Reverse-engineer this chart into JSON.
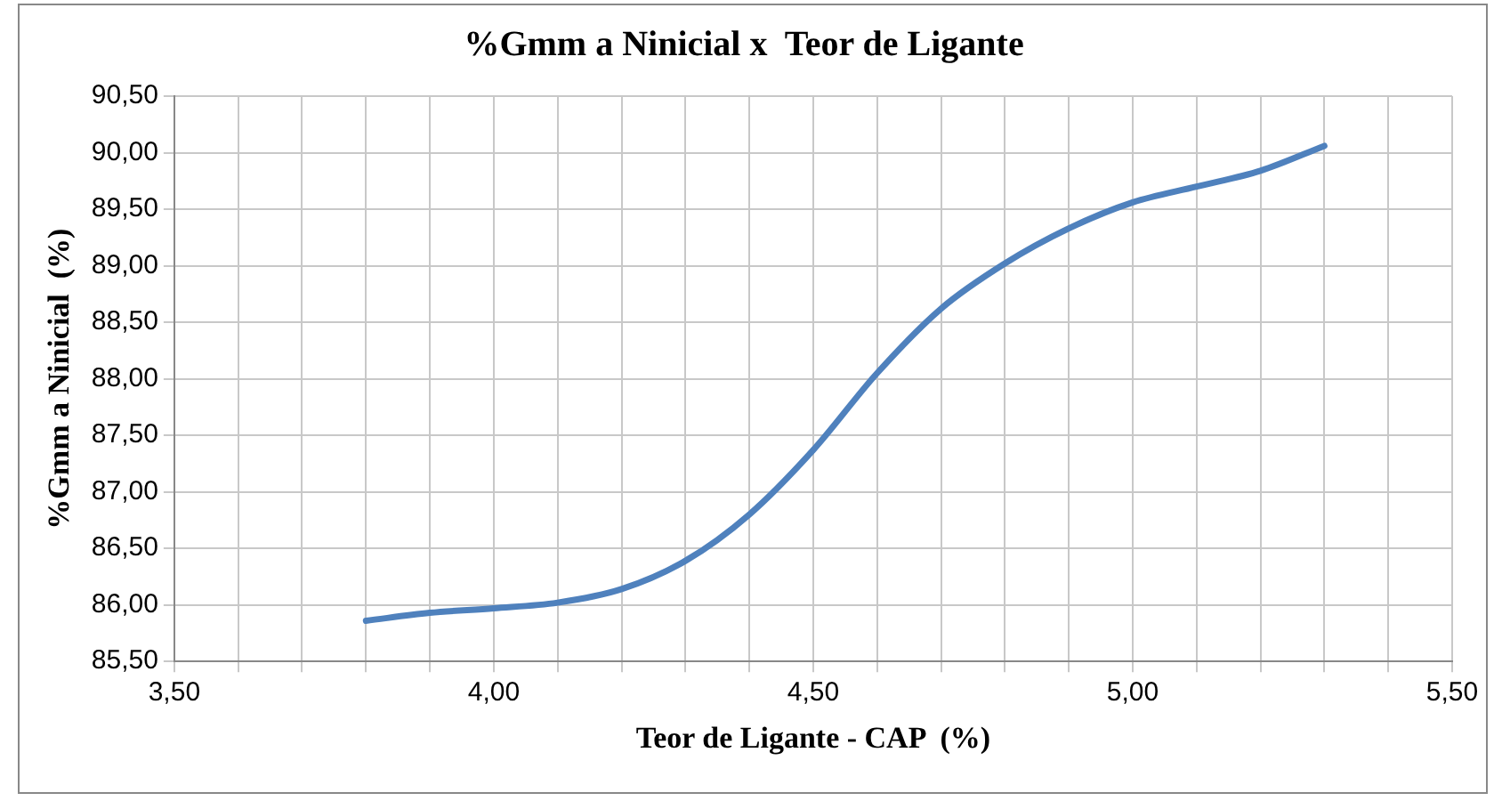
{
  "chart_data": {
    "type": "line",
    "title": "%Gmm a Ninicial x  Teor de Ligante",
    "xlabel": "Teor de Ligante - CAP  (%)",
    "ylabel": "%Gmm a Ninicial  (%)",
    "x": [
      3.8,
      3.9,
      4.0,
      4.1,
      4.2,
      4.3,
      4.4,
      4.5,
      4.6,
      4.7,
      4.8,
      4.9,
      5.0,
      5.1,
      5.2,
      5.3
    ],
    "series": [
      {
        "color": "#4f81bd",
        "values": [
          85.86,
          85.93,
          85.97,
          86.02,
          86.14,
          86.39,
          86.8,
          87.37,
          88.05,
          88.62,
          89.02,
          89.33,
          89.56,
          89.7,
          89.84,
          90.06
        ]
      }
    ],
    "xlim": [
      3.5,
      5.5
    ],
    "xticks": [
      {
        "value": 3.5,
        "label": "3,50"
      },
      {
        "value": 3.6,
        "label": null
      },
      {
        "value": 3.7,
        "label": null
      },
      {
        "value": 3.8,
        "label": null
      },
      {
        "value": 3.9,
        "label": null
      },
      {
        "value": 4.0,
        "label": "4,00"
      },
      {
        "value": 4.1,
        "label": null
      },
      {
        "value": 4.2,
        "label": null
      },
      {
        "value": 4.3,
        "label": null
      },
      {
        "value": 4.4,
        "label": null
      },
      {
        "value": 4.5,
        "label": "4,50"
      },
      {
        "value": 4.6,
        "label": null
      },
      {
        "value": 4.7,
        "label": null
      },
      {
        "value": 4.8,
        "label": null
      },
      {
        "value": 4.9,
        "label": null
      },
      {
        "value": 5.0,
        "label": "5,00"
      },
      {
        "value": 5.1,
        "label": null
      },
      {
        "value": 5.2,
        "label": null
      },
      {
        "value": 5.3,
        "label": null
      },
      {
        "value": 5.4,
        "label": null
      },
      {
        "value": 5.5,
        "label": "5,50"
      }
    ],
    "ylim": [
      85.5,
      90.5
    ],
    "yticks": [
      {
        "value": 85.5,
        "label": "85,50"
      },
      {
        "value": 86,
        "label": "86,00"
      },
      {
        "value": 86.5,
        "label": "86,50"
      },
      {
        "value": 87,
        "label": "87,00"
      },
      {
        "value": 87.5,
        "label": "87,50"
      },
      {
        "value": 88,
        "label": "88,00"
      },
      {
        "value": 88.5,
        "label": "88,50"
      },
      {
        "value": 89,
        "label": "89,00"
      },
      {
        "value": 89.5,
        "label": "89,50"
      },
      {
        "value": 90,
        "label": "90,00"
      },
      {
        "value": 90.5,
        "label": "90,50"
      }
    ],
    "grid": true,
    "legend": false,
    "marker": "none",
    "line_style": "solid"
  }
}
